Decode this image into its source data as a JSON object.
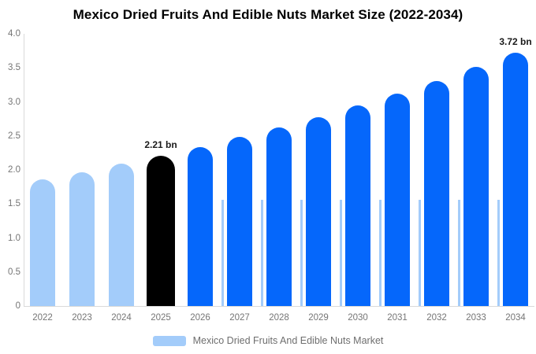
{
  "title": "Mexico Dried Fruits And Edible Nuts Market Size (2022-2034)",
  "legend": {
    "label": "Mexico Dried Fruits And Edible Nuts Market",
    "swatch_color": "#a3ccfa"
  },
  "colors": {
    "history_bar": "#a3ccfa",
    "highlight_bar": "#000000",
    "forecast_bar": "#0567fb",
    "axis_line": "#d9d9d9",
    "tick_text": "#757575",
    "annotation_text": "#1a1a1a",
    "title_text": "#000000",
    "legend_text": "#6e6e6e",
    "background": "#ffffff"
  },
  "chart_data": {
    "type": "bar",
    "title": "Mexico Dried Fruits And Edible Nuts Market Size (2022-2034)",
    "series_name": "Mexico Dried Fruits And Edible Nuts Market",
    "unit": "bn",
    "categories": [
      "2022",
      "2023",
      "2024",
      "2025",
      "2026",
      "2027",
      "2028",
      "2029",
      "2030",
      "2031",
      "2032",
      "2033",
      "2034"
    ],
    "values": [
      1.86,
      1.97,
      2.09,
      2.21,
      2.34,
      2.48,
      2.63,
      2.78,
      2.95,
      3.12,
      3.31,
      3.51,
      3.72
    ],
    "bar_roles": [
      "history",
      "history",
      "history",
      "highlight",
      "forecast",
      "forecast",
      "forecast",
      "forecast",
      "forecast",
      "forecast",
      "forecast",
      "forecast",
      "forecast"
    ],
    "annotations": [
      {
        "category": "2025",
        "text": "2.21 bn"
      },
      {
        "category": "2034",
        "text": "3.72 bn"
      }
    ],
    "xlabel": "",
    "ylabel": "",
    "ylim": [
      0,
      4
    ],
    "y_ticks": [
      {
        "label": "4.0",
        "value": 4.0
      },
      {
        "label": "3.5",
        "value": 3.5
      },
      {
        "label": "3.0",
        "value": 3.0
      },
      {
        "label": "2.5",
        "value": 2.5
      },
      {
        "label": "2.0",
        "value": 2.0
      },
      {
        "label": "1.5",
        "value": 1.5
      },
      {
        "label": "1.0",
        "value": 1.0
      },
      {
        "label": "0.5",
        "value": 0.5
      },
      {
        "label": "0",
        "value": 0
      }
    ],
    "grid": false,
    "legend_position": "bottom"
  }
}
